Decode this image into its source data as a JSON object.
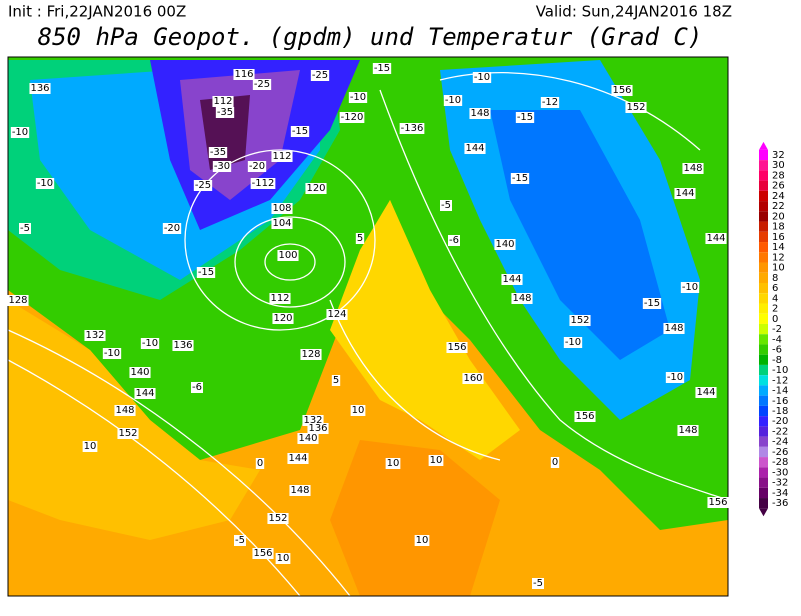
{
  "header": {
    "init": "Init : Fri,22JAN2016 00Z",
    "valid": "Valid: Sun,24JAN2016 18Z",
    "title": "850 hPa Geopot. (gpdm) und Temperatur (Grad C)"
  },
  "legend": {
    "ticks": [
      32,
      30,
      28,
      26,
      24,
      22,
      20,
      18,
      16,
      14,
      12,
      10,
      8,
      6,
      4,
      2,
      0,
      -2,
      -4,
      -6,
      -8,
      -10,
      -12,
      -14,
      -16,
      -18,
      -20,
      -22,
      -24,
      -26,
      -28,
      -30,
      -32,
      -34,
      -36
    ],
    "colors": [
      "#ff00ff",
      "#ff1493",
      "#ff0066",
      "#e8003c",
      "#cc0000",
      "#b30000",
      "#990000",
      "#c81e00",
      "#e63c00",
      "#ff5a00",
      "#ff7800",
      "#ff9600",
      "#ffaa00",
      "#ffc000",
      "#ffd700",
      "#ffee00",
      "#ffff00",
      "#ccff00",
      "#66e600",
      "#33cc00",
      "#00b300",
      "#00d17a",
      "#00e0e0",
      "#00aaff",
      "#0077ff",
      "#0044ff",
      "#3322ff",
      "#5522dd",
      "#8844cc",
      "#b088e6",
      "#cc55cc",
      "#aa22aa",
      "#881188",
      "#660066",
      "#440044"
    ]
  },
  "contour_labels": [
    "136",
    "-10",
    "-10",
    "-5",
    "128",
    "132",
    "-10",
    "-10",
    "136",
    "140",
    "144",
    "148",
    "152",
    "10",
    "-6",
    "-15",
    "-20",
    "-25",
    "-35",
    "-35",
    "-30",
    "112",
    "116",
    "-25",
    "-25",
    "-15",
    "-120",
    "-10",
    "-15",
    "-136",
    "112",
    "-20",
    "-112",
    "120",
    "108",
    "104",
    "100",
    "112",
    "120",
    "124",
    "128",
    "132",
    "136",
    "140",
    "144",
    "0",
    "148",
    "152",
    "-5",
    "156",
    "10",
    "10",
    "10",
    "10",
    "-5",
    "0",
    "156",
    "148",
    "144",
    "-10",
    "156",
    "160",
    "156",
    "-10",
    "152",
    "148",
    "144",
    "140",
    "-6",
    "-5",
    "-15",
    "144",
    "148",
    "-10",
    "-10",
    "-15",
    "-12",
    "156",
    "152",
    "148",
    "144",
    "144",
    "-10",
    "-15",
    "148",
    "5",
    "5",
    "10"
  ]
}
